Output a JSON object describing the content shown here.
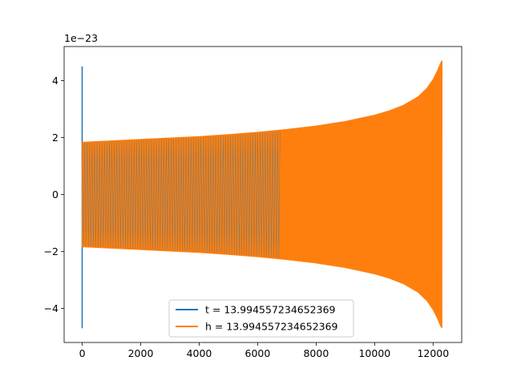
{
  "chart_data": {
    "type": "line",
    "title": "",
    "xlabel": "",
    "ylabel": "",
    "offset_label": "1e−23",
    "xlim": [
      -618,
      12978
    ],
    "ylim": [
      -5.2,
      5.2
    ],
    "x_ticks": [
      0,
      2000,
      4000,
      6000,
      8000,
      10000,
      12000
    ],
    "x_tick_labels": [
      "0",
      "2000",
      "4000",
      "6000",
      "8000",
      "10000",
      "12000"
    ],
    "y_ticks": [
      -4,
      -2,
      0,
      2,
      4
    ],
    "y_tick_labels": [
      "−4",
      "−2",
      "0",
      "2",
      "4"
    ],
    "grid": false,
    "legend_position": "lower center",
    "series": [
      {
        "name": "t = 13.994557234652369",
        "color": "#1f77b4",
        "description_points": {
          "x": [
            0,
            0,
            0,
            0,
            40,
            12280
          ],
          "y": [
            4.5,
            -4.7,
            1.8,
            -1.2,
            1.85,
            4.7
          ]
        }
      },
      {
        "name": "h = 13.994557234652369",
        "color": "#ff7f0e",
        "envelope": {
          "x": [
            0,
            1000,
            2000,
            3000,
            4000,
            5000,
            6000,
            7000,
            8000,
            9000,
            10000,
            10500,
            11000,
            11500,
            11800,
            12000,
            12150,
            12250,
            12300
          ],
          "upper": [
            1.85,
            1.9,
            1.95,
            2.0,
            2.05,
            2.12,
            2.2,
            2.3,
            2.42,
            2.58,
            2.8,
            2.95,
            3.15,
            3.45,
            3.75,
            4.05,
            4.35,
            4.6,
            4.7
          ],
          "lower": [
            -1.85,
            -1.9,
            -1.95,
            -2.0,
            -2.05,
            -2.12,
            -2.2,
            -2.3,
            -2.42,
            -2.58,
            -2.8,
            -2.95,
            -3.15,
            -3.45,
            -3.75,
            -4.05,
            -4.35,
            -4.6,
            -4.7
          ]
        }
      }
    ]
  }
}
